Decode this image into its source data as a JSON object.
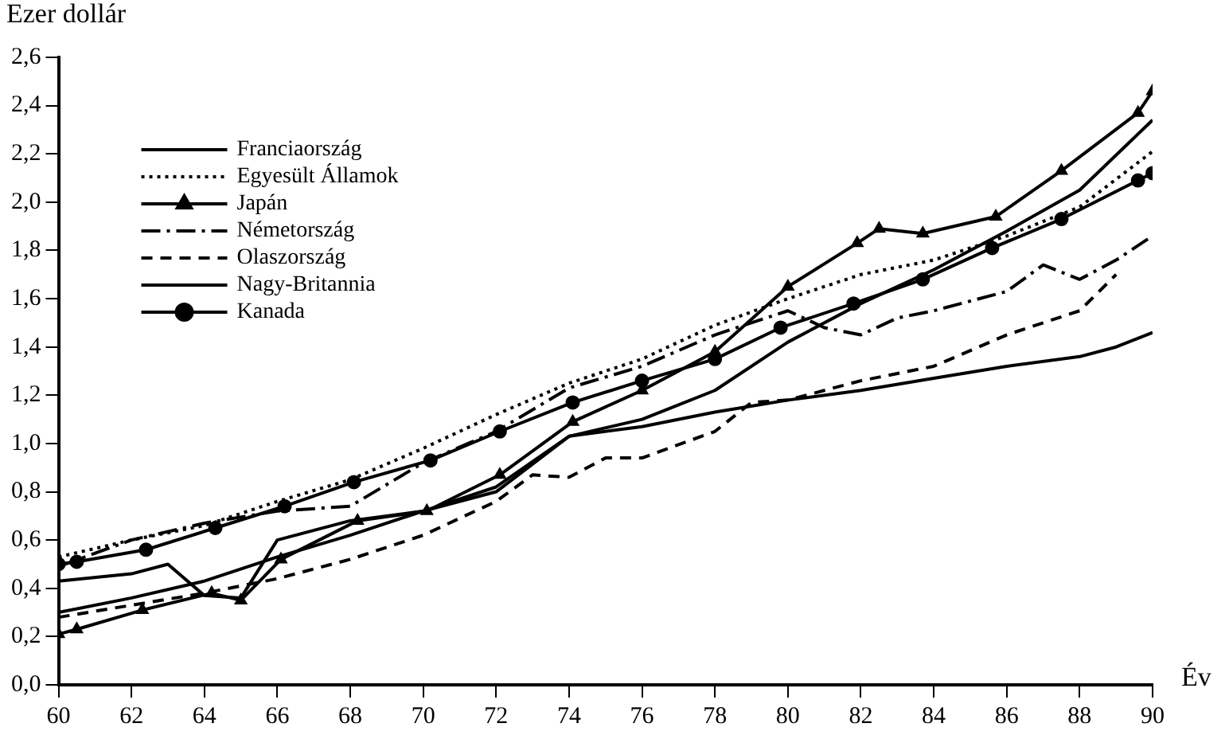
{
  "chart_data": {
    "type": "line",
    "xlabel": "Év",
    "ylabel": "Ezer dollár",
    "xlim": [
      60,
      90
    ],
    "xticks": [
      60,
      62,
      64,
      66,
      68,
      70,
      72,
      74,
      76,
      78,
      80,
      82,
      84,
      86,
      88,
      90
    ],
    "ylim": [
      0,
      2.6
    ],
    "yticks": [
      {
        "value": 0,
        "label": "0,0"
      },
      {
        "value": 0.2,
        "label": "0,2"
      },
      {
        "value": 0.4,
        "label": "0,4"
      },
      {
        "value": 0.6,
        "label": "0,6"
      },
      {
        "value": 0.8,
        "label": "0,8"
      },
      {
        "value": 1,
        "label": "1,0"
      },
      {
        "value": 1.2,
        "label": "1,2"
      },
      {
        "value": 1.4,
        "label": "1,4"
      },
      {
        "value": 1.6,
        "label": "1,6"
      },
      {
        "value": 1.8,
        "label": "1,8"
      },
      {
        "value": 2,
        "label": "2,0"
      },
      {
        "value": 2.2,
        "label": "2,2"
      },
      {
        "value": 2.4,
        "label": "2,4"
      },
      {
        "value": 2.6,
        "label": "2,6"
      }
    ],
    "grid": false,
    "legend": "top left",
    "series": [
      {
        "name": "Franciaország",
        "color": "#000000",
        "line_style": "solid",
        "marker": "none",
        "x": [
          60,
          62,
          64,
          66,
          68,
          70,
          72,
          74,
          76,
          78,
          80,
          82,
          84,
          86,
          88,
          90
        ],
        "values": [
          0.3,
          0.36,
          0.43,
          0.53,
          0.62,
          0.72,
          0.82,
          1.03,
          1.1,
          1.22,
          1.42,
          1.58,
          1.72,
          1.88,
          2.05,
          2.34
        ]
      },
      {
        "name": "Egyesült Államok",
        "color": "#000000",
        "line_style": "dotted",
        "marker": "none",
        "x": [
          60,
          62,
          64,
          66,
          68,
          70,
          72,
          74,
          76,
          78,
          80,
          82,
          84,
          86,
          88,
          90
        ],
        "values": [
          0.53,
          0.6,
          0.66,
          0.76,
          0.85,
          0.98,
          1.12,
          1.25,
          1.35,
          1.49,
          1.6,
          1.7,
          1.76,
          1.86,
          1.98,
          2.21
        ]
      },
      {
        "name": "Japán",
        "color": "#000000",
        "line_style": "solid",
        "marker": "triangle",
        "x": [
          60,
          60.5,
          62.3,
          64.2,
          65,
          66.1,
          68.2,
          70.1,
          72.1,
          74.1,
          76,
          78,
          80,
          81.9,
          82.5,
          83.7,
          85.7,
          87.5,
          89.6,
          90
        ],
        "values": [
          0.21,
          0.23,
          0.31,
          0.38,
          0.35,
          0.52,
          0.68,
          0.72,
          0.87,
          1.09,
          1.22,
          1.38,
          1.65,
          1.83,
          1.89,
          1.87,
          1.94,
          2.13,
          2.37,
          2.46
        ]
      },
      {
        "name": "Németország",
        "color": "#000000",
        "line_style": "dashdot",
        "marker": "none",
        "x": [
          60,
          62,
          64,
          66,
          68,
          70,
          72,
          74,
          76,
          78,
          80,
          81,
          82,
          83,
          84,
          86,
          87,
          88,
          89,
          90
        ],
        "values": [
          0.49,
          0.6,
          0.67,
          0.72,
          0.74,
          0.92,
          1.05,
          1.23,
          1.32,
          1.45,
          1.55,
          1.48,
          1.45,
          1.52,
          1.55,
          1.63,
          1.74,
          1.68,
          1.76,
          1.86
        ]
      },
      {
        "name": "Olaszország",
        "color": "#000000",
        "line_style": "dashed",
        "marker": "none",
        "x": [
          60,
          62,
          64,
          66,
          68,
          70,
          72,
          73,
          74,
          75,
          76,
          78,
          79,
          80,
          82,
          84,
          86,
          88,
          89
        ],
        "values": [
          0.28,
          0.33,
          0.38,
          0.44,
          0.52,
          0.62,
          0.76,
          0.87,
          0.86,
          0.94,
          0.94,
          1.05,
          1.17,
          1.18,
          1.26,
          1.32,
          1.45,
          1.55,
          1.7
        ]
      },
      {
        "name": "Nagy-Britannia",
        "color": "#000000",
        "line_style": "solid",
        "marker": "none",
        "x": [
          60,
          62,
          63,
          64,
          65,
          66,
          68,
          70,
          72,
          74,
          76,
          78,
          80,
          82,
          84,
          86,
          88,
          89,
          90
        ],
        "values": [
          0.43,
          0.46,
          0.5,
          0.37,
          0.36,
          0.6,
          0.68,
          0.72,
          0.8,
          1.03,
          1.07,
          1.13,
          1.18,
          1.22,
          1.27,
          1.32,
          1.36,
          1.4,
          1.46
        ]
      },
      {
        "name": "Kanada",
        "color": "#000000",
        "line_style": "solid",
        "marker": "circle",
        "x": [
          60,
          60.5,
          62.4,
          64.3,
          66.2,
          68.1,
          70.2,
          72.1,
          74.1,
          76,
          78,
          79.8,
          81.8,
          83.7,
          85.6,
          87.5,
          89.6,
          90
        ],
        "values": [
          0.5,
          0.51,
          0.56,
          0.65,
          0.74,
          0.84,
          0.93,
          1.05,
          1.17,
          1.26,
          1.35,
          1.48,
          1.58,
          1.68,
          1.81,
          1.93,
          2.09,
          2.12
        ]
      }
    ]
  }
}
